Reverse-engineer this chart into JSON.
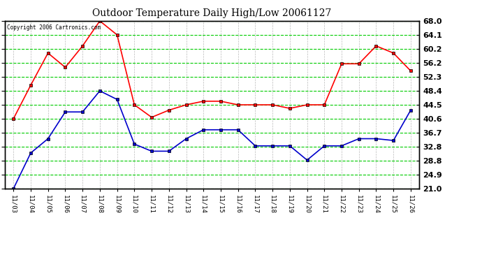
{
  "title": "Outdoor Temperature Daily High/Low 20061127",
  "copyright": "Copyright 2006 Cartronics.com",
  "x_labels": [
    "11/03",
    "11/04",
    "11/05",
    "11/06",
    "11/07",
    "11/08",
    "11/09",
    "11/10",
    "11/11",
    "11/12",
    "11/13",
    "11/14",
    "11/15",
    "11/16",
    "11/17",
    "11/18",
    "11/19",
    "11/20",
    "11/21",
    "11/22",
    "11/23",
    "11/24",
    "11/25",
    "11/26"
  ],
  "high_temps": [
    40.6,
    50.0,
    59.0,
    55.0,
    61.0,
    68.0,
    64.1,
    44.5,
    41.0,
    43.0,
    44.5,
    45.5,
    45.5,
    44.5,
    44.5,
    44.5,
    43.5,
    44.5,
    44.5,
    56.0,
    56.0,
    61.0,
    59.0,
    54.0
  ],
  "low_temps": [
    21.0,
    31.0,
    35.0,
    42.5,
    42.5,
    48.4,
    46.0,
    33.5,
    31.5,
    31.5,
    35.0,
    37.5,
    37.5,
    37.5,
    33.0,
    33.0,
    33.0,
    29.0,
    33.0,
    33.0,
    35.0,
    35.0,
    34.5,
    43.0
  ],
  "high_color": "#ff0000",
  "low_color": "#0000cc",
  "bg_color": "#ffffff",
  "plot_bg_color": "#ffffff",
  "grid_color": "#00cc00",
  "grid_minor_color": "#aaaaaa",
  "title_color": "#000000",
  "y_min": 21.0,
  "y_max": 68.0,
  "y_ticks": [
    21.0,
    24.9,
    28.8,
    32.8,
    36.7,
    40.6,
    44.5,
    48.4,
    52.3,
    56.2,
    60.2,
    64.1,
    68.0
  ]
}
